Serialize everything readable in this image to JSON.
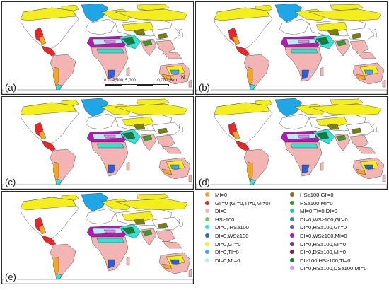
{
  "panels": [
    {
      "id": "a",
      "label": "(a)"
    },
    {
      "id": "b",
      "label": "(b)"
    },
    {
      "id": "c",
      "label": "(c)"
    },
    {
      "id": "d",
      "label": "(d)"
    },
    {
      "id": "e",
      "label": "(e)"
    }
  ],
  "scalebar": {
    "ticks": [
      "0",
      "2,500",
      "5,000",
      "10,000"
    ],
    "unit": "Km"
  },
  "north_arrow": {
    "label": "N"
  },
  "legend": {
    "left": [
      {
        "label": "MI=0",
        "color": "#f6a623"
      },
      {
        "label": "GI'=0 (GI=0,TI≠0,MI≠0)",
        "color": "#e8262a"
      },
      {
        "label": "DI=0",
        "color": "#f2b5b3"
      },
      {
        "label": "HS≥100",
        "color": "#5fd35f"
      },
      {
        "label": "DI=0, HS≥100",
        "color": "#35e0d5"
      },
      {
        "label": "DI=0,WS≥100",
        "color": "#2c5fe0"
      },
      {
        "label": "DI=0,GI'=0",
        "color": "#f4ee1f"
      },
      {
        "label": "DI=0,TI=0",
        "color": "#49a6e8"
      },
      {
        "label": "DI=0,MI=0",
        "color": "#b8ecf2"
      }
    ],
    "right": [
      {
        "label": "HS≥100,GI'=0",
        "color": "#7b7c1a"
      },
      {
        "label": "HS≥100,MI=0",
        "color": "#3d9a2c"
      },
      {
        "label": "MI=0,TI=0,DI=0",
        "color": "#2fc4a2"
      },
      {
        "label": "DI=0,WS≥100,GI'=0",
        "color": "#3b8fa6"
      },
      {
        "label": "DI=0,HS≥100,GI'=0",
        "color": "#6a5fc8"
      },
      {
        "label": "DI=0,WS≥100,MI=0",
        "color": "#b01ab0"
      },
      {
        "label": "DI=0,HS≥100,MI=0",
        "color": "#7a3b86"
      },
      {
        "label": "DI=0,DS≥100,MI=0",
        "color": "#8a1e3c"
      },
      {
        "label": "DI≥100,HS≥100,TI=0",
        "color": "#1c7a3a"
      },
      {
        "label": "DI=0,HS≥100,DS≥100,MI=0",
        "color": "#e28ef0"
      }
    ]
  }
}
